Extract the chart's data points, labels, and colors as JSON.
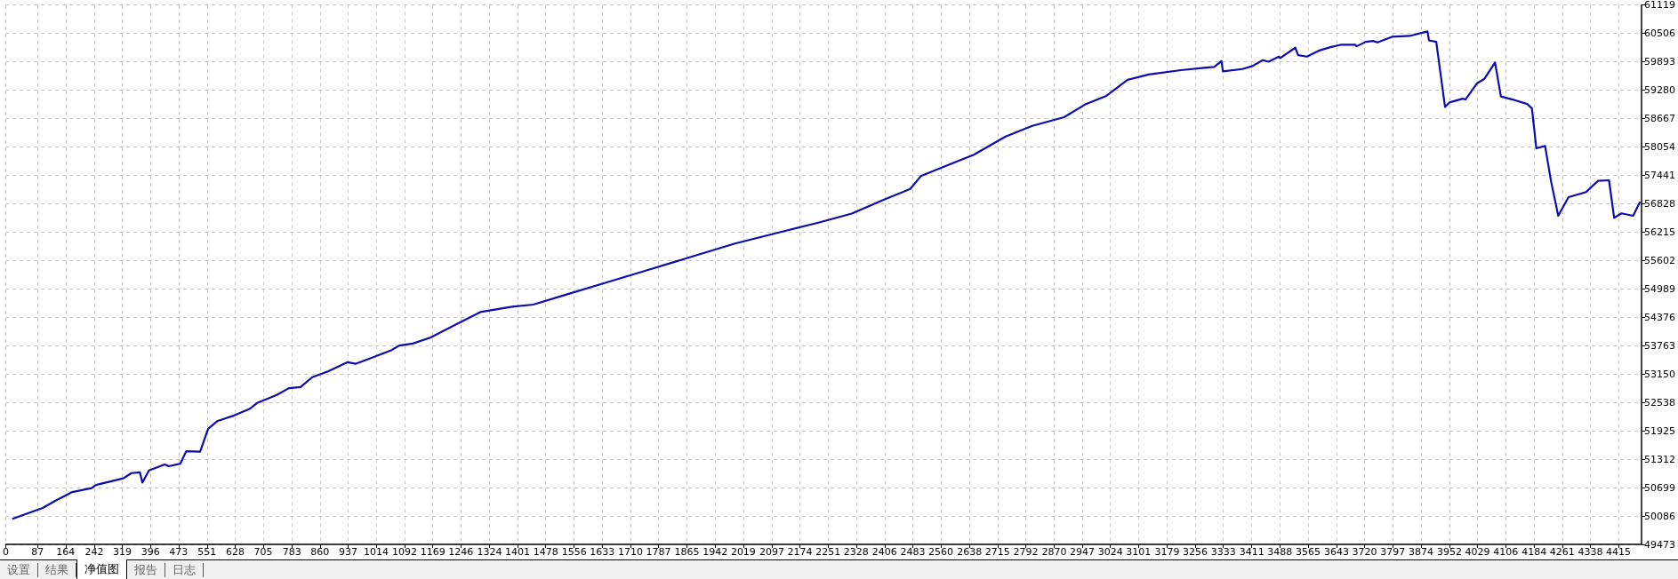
{
  "chart_data": {
    "type": "line",
    "xlim": [
      0,
      4478
    ],
    "ylim": [
      49473,
      61119
    ],
    "xticks": [
      0,
      87,
      164,
      242,
      319,
      396,
      473,
      551,
      628,
      705,
      783,
      860,
      937,
      1014,
      1092,
      1169,
      1246,
      1324,
      1401,
      1478,
      1556,
      1633,
      1710,
      1787,
      1865,
      1942,
      2019,
      2097,
      2174,
      2251,
      2328,
      2406,
      2483,
      2560,
      2638,
      2715,
      2792,
      2870,
      2947,
      3024,
      3101,
      3179,
      3256,
      3333,
      3411,
      3488,
      3565,
      3643,
      3720,
      3797,
      3874,
      3952,
      4029,
      4106,
      4184,
      4261,
      4338,
      4415
    ],
    "yticks": [
      49473,
      50086,
      50699,
      51312,
      51925,
      52538,
      53150,
      53763,
      54376,
      54989,
      55602,
      56215,
      56828,
      57441,
      58054,
      58667,
      59280,
      59893,
      60506,
      61119
    ],
    "grid": true,
    "marker": "none",
    "line_style": "solid",
    "annotations": [
      "设置",
      "结果",
      "净值图",
      "报告",
      "日志"
    ],
    "series": [
      {
        "color": "#0c0cb0",
        "x": [
          20,
          101,
          133,
          182,
          235,
          247,
          322,
          344,
          367,
          374,
          392,
          435,
          446,
          478,
          494,
          532,
          554,
          580,
          624,
          667,
          688,
          742,
          775,
          807,
          839,
          882,
          936,
          957,
          990,
          1055,
          1077,
          1114,
          1162,
          1299,
          1386,
          1444,
          1531,
          1647,
          1764,
          1880,
          1996,
          2112,
          2229,
          2316,
          2403,
          2476,
          2505,
          2577,
          2650,
          2737,
          2810,
          2897,
          2955,
          3013,
          3071,
          3129,
          3217,
          3280,
          3308,
          3328,
          3332,
          3385,
          3413,
          3441,
          3457,
          3485,
          3489,
          3530,
          3538,
          3562,
          3594,
          3626,
          3654,
          3694,
          3698,
          3723,
          3743,
          3755,
          3795,
          3843,
          3892,
          3896,
          3916,
          3940,
          3952,
          3988,
          3996,
          4028,
          4048,
          4077,
          4093,
          4125,
          4165,
          4178,
          4190,
          4214,
          4230,
          4250,
          4278,
          4326,
          4359,
          4389,
          4403,
          4423,
          4455,
          4473
        ],
        "values": [
          50029,
          50258,
          50404,
          50603,
          50687,
          50756,
          50900,
          51011,
          51029,
          50806,
          51070,
          51199,
          51159,
          51216,
          51484,
          51473,
          51969,
          52139,
          52251,
          52396,
          52524,
          52697,
          52844,
          52867,
          53082,
          53208,
          53406,
          53371,
          53465,
          53662,
          53764,
          53808,
          53936,
          54487,
          54603,
          54649,
          54857,
          55134,
          55412,
          55689,
          55966,
          56197,
          56428,
          56613,
          56913,
          57145,
          57422,
          57653,
          57884,
          58276,
          58508,
          58693,
          58970,
          59155,
          59502,
          59617,
          59710,
          59759,
          59778,
          59906,
          59683,
          59734,
          59798,
          59926,
          59893,
          60003,
          59970,
          60194,
          60033,
          60003,
          60129,
          60206,
          60257,
          60257,
          60225,
          60321,
          60340,
          60308,
          60430,
          60449,
          60545,
          60353,
          60321,
          58916,
          59012,
          59095,
          59076,
          59428,
          59524,
          59874,
          59141,
          59076,
          58980,
          58884,
          58022,
          58074,
          57321,
          56566,
          56968,
          57078,
          57321,
          57333,
          56522,
          56618,
          56566,
          56853
        ]
      }
    ]
  }
}
